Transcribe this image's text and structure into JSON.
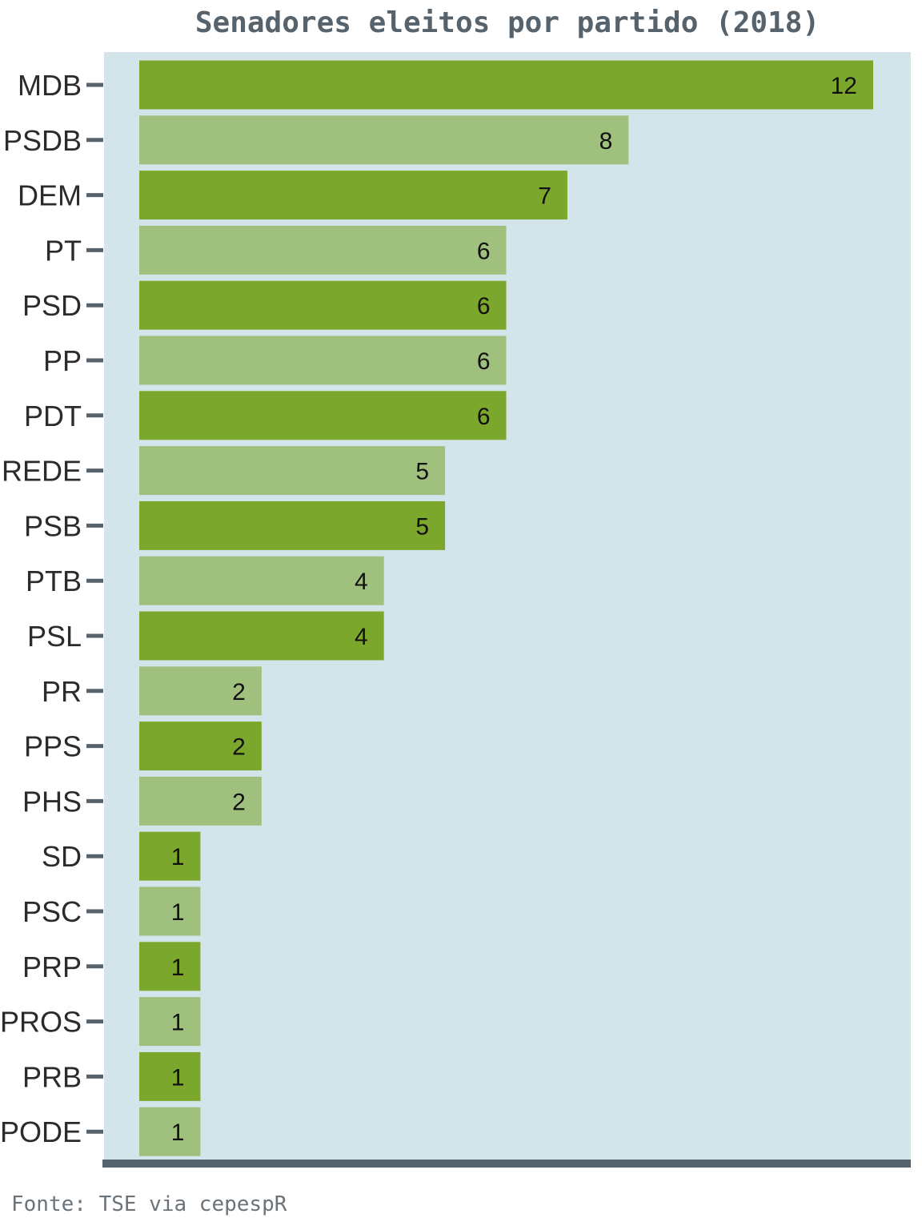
{
  "chart_data": {
    "type": "bar",
    "orientation": "horizontal",
    "title": "Senadores eleitos por partido (2018)",
    "xlabel": "",
    "ylabel": "",
    "categories": [
      "MDB",
      "PSDB",
      "DEM",
      "PT",
      "PSD",
      "PP",
      "PDT",
      "REDE",
      "PSB",
      "PTB",
      "PSL",
      "PR",
      "PPS",
      "PHS",
      "SD",
      "PSC",
      "PRP",
      "PROS",
      "PRB",
      "PODE"
    ],
    "values": [
      12,
      8,
      7,
      6,
      6,
      6,
      6,
      5,
      5,
      4,
      4,
      2,
      2,
      2,
      1,
      1,
      1,
      1,
      1,
      1
    ],
    "data_labels": [
      "12",
      "8",
      "7",
      "6",
      "6",
      "6",
      "6",
      "5",
      "5",
      "4",
      "4",
      "2",
      "2",
      "2",
      "1",
      "1",
      "1",
      "1",
      "1",
      "1"
    ],
    "xlim": [
      0,
      12.5
    ],
    "grid": false,
    "legend": "none",
    "colors": {
      "bar_dark": "#7ba72c",
      "bar_light": "#a0c17d",
      "panel_background": "#d4e4eb",
      "axis": "#56626c"
    },
    "source": "Fonte: TSE via cepespR"
  }
}
